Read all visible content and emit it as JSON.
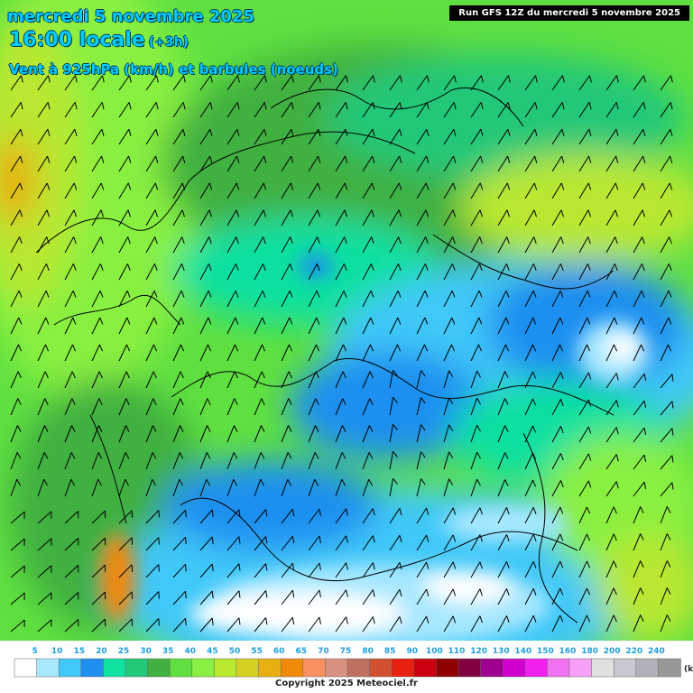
{
  "header": {
    "date": "mercredi 5 novembre 2025",
    "time": "16:00 locale",
    "offset": "(+3h)",
    "variable": "Vent à 925hPa (km/h) et barbules (noeuds)"
  },
  "run_banner": "Run GFS 12Z du mercredi 5 novembre 2025",
  "legend": {
    "unit": "(km/h)",
    "ticks": [
      "5",
      "10",
      "15",
      "20",
      "25",
      "30",
      "35",
      "40",
      "45",
      "50",
      "55",
      "60",
      "65",
      "70",
      "75",
      "80",
      "85",
      "90",
      "100",
      "110",
      "120",
      "130",
      "140",
      "150",
      "160",
      "180",
      "200",
      "220",
      "240"
    ],
    "colors": [
      "#ffffff",
      "#a8e8ff",
      "#40c8f8",
      "#1f8ff0",
      "#10e0a0",
      "#20c878",
      "#40b040",
      "#60e040",
      "#88f040",
      "#b8e830",
      "#d8d020",
      "#e8b010",
      "#f08808",
      "#f89060",
      "#d89080",
      "#c07060",
      "#d05030",
      "#e82010",
      "#c80010",
      "#900000",
      "#800040",
      "#a00090",
      "#d000d0",
      "#f020f0",
      "#f070f0",
      "#f8a0f8",
      "#e0e0e0",
      "#c8c8d0",
      "#b0b0b8",
      "#989898"
    ]
  },
  "copyright": "Copyright 2025 Meteociel.fr"
}
